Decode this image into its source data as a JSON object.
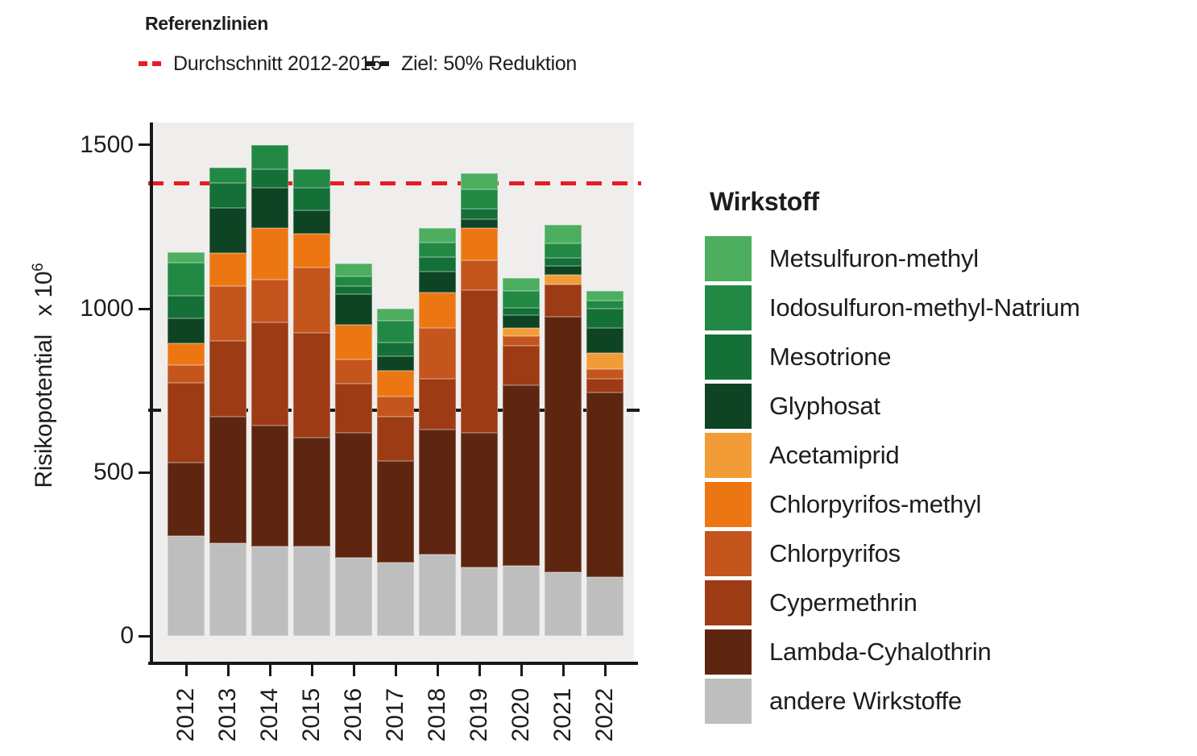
{
  "figure": {
    "ref_legend": {
      "title": "Referenzlinien",
      "items": [
        {
          "label": "Durchschnitt 2012-2015",
          "color": "#e81c24"
        },
        {
          "label": "Ziel: 50% Reduktion",
          "color": "#1a1a1a"
        }
      ]
    },
    "y_axis": {
      "label_base": "Risikopotential  x 10",
      "label_exponent": "6"
    },
    "legend": {
      "title": "Wirkstoff"
    }
  },
  "chart_data": {
    "type": "bar",
    "stacked": true,
    "title": "",
    "xlabel": "",
    "ylabel": "Risikopotential x 10^6",
    "categories": [
      "2012",
      "2013",
      "2014",
      "2015",
      "2016",
      "2017",
      "2018",
      "2019",
      "2020",
      "2021",
      "2022"
    ],
    "yticks": [
      0,
      500,
      1000,
      1500
    ],
    "ylim": [
      0,
      1570
    ],
    "grid": false,
    "legend_title": "Wirkstoff",
    "legend_position": "right",
    "series": [
      {
        "name": "Metsulfuron-methyl",
        "color": "#4cae5e",
        "values": [
          32,
          0,
          0,
          0,
          41,
          37,
          45,
          50,
          41,
          56,
          29
        ]
      },
      {
        "name": "Iodosulfuron-methyl-Natrium",
        "color": "#218944",
        "values": [
          100,
          46,
          74,
          56,
          29,
          65,
          43,
          58,
          50,
          45,
          25
        ]
      },
      {
        "name": "Mesotrione",
        "color": "#147036",
        "values": [
          70,
          77,
          56,
          70,
          25,
          42,
          44,
          32,
          23,
          25,
          58
        ]
      },
      {
        "name": "Glyphosat",
        "color": "#0e4424",
        "values": [
          77,
          137,
          125,
          71,
          94,
          45,
          66,
          28,
          39,
          26,
          77
        ]
      },
      {
        "name": "Acetamiprid",
        "color": "#f29c38",
        "values": [
          0,
          0,
          0,
          0,
          0,
          0,
          0,
          0,
          24,
          31,
          49
        ]
      },
      {
        "name": "Chlorpyrifos-methyl",
        "color": "#ec7712",
        "values": [
          66,
          101,
          156,
          103,
          105,
          78,
          107,
          99,
          0,
          0,
          0
        ]
      },
      {
        "name": "Chlorpyrifos",
        "color": "#c4551c",
        "values": [
          54,
          168,
          131,
          201,
          75,
          62,
          155,
          90,
          29,
          0,
          30
        ]
      },
      {
        "name": "Cypermethrin",
        "color": "#9d3b14",
        "values": [
          242,
          231,
          316,
          320,
          150,
          135,
          156,
          435,
          123,
          98,
          40
        ]
      },
      {
        "name": "Lambda-Cyhalothrin",
        "color": "#5e2610",
        "values": [
          226,
          385,
          367,
          330,
          380,
          310,
          380,
          412,
          550,
          780,
          565
        ]
      },
      {
        "name": "andere Wirkstoffe",
        "color": "#bebebe",
        "values": [
          305,
          285,
          275,
          275,
          240,
          225,
          250,
          210,
          215,
          195,
          180
        ]
      }
    ],
    "totals": [
      1172,
      1430,
      1500,
      1426,
      1139,
      999,
      1246,
      1414,
      1094,
      1256,
      1053
    ],
    "reference_lines": [
      {
        "label": "Durchschnitt 2012-2015",
        "value": 1382,
        "color": "#e81c24",
        "style": "dashed"
      },
      {
        "label": "Ziel: 50% Reduktion",
        "value": 691,
        "color": "#1a1a1a",
        "style": "dashed"
      }
    ]
  }
}
